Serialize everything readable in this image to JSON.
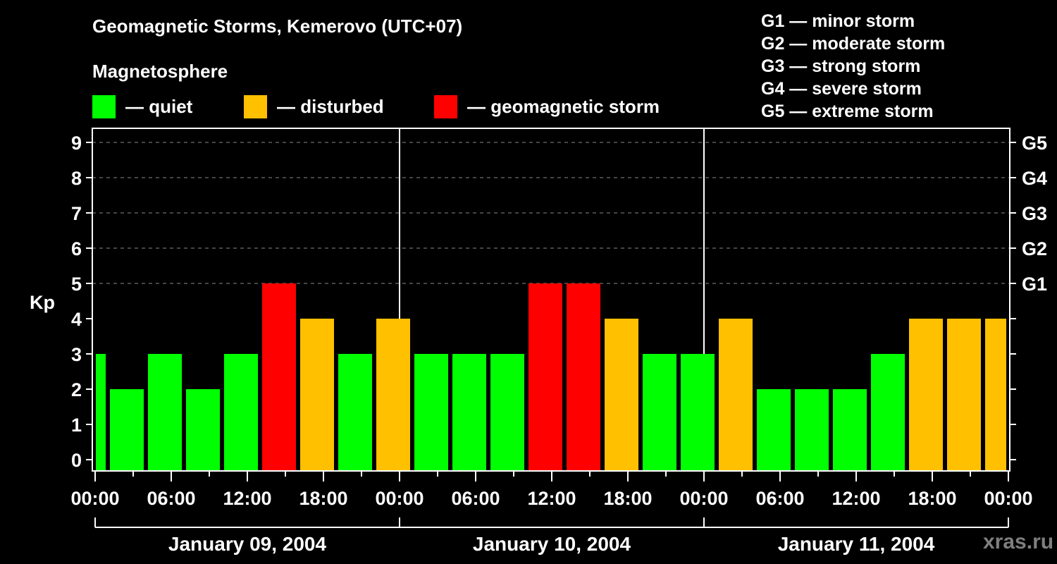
{
  "header": {
    "title": "Geomagnetic Storms, Kemerovo (UTC+07)",
    "subtitle": "Magnetosphere"
  },
  "legend": [
    {
      "label": "— quiet",
      "color": "#00ff00"
    },
    {
      "label": "— disturbed",
      "color": "#ffc000"
    },
    {
      "label": "— geomagnetic storm",
      "color": "#ff0000"
    }
  ],
  "g_scale_legend": [
    "G1 — minor storm",
    "G2 — moderate storm",
    "G3 — strong storm",
    "G4 — severe storm",
    "G5 — extreme storm"
  ],
  "watermark": "xras.ru",
  "chart_data": {
    "type": "bar",
    "title": "Geomagnetic Storms, Kemerovo (UTC+07)",
    "subtitle": "Magnetosphere",
    "ylabel": "Kp",
    "xlabel": "",
    "ylim": [
      0,
      9
    ],
    "yticks": [
      0,
      1,
      2,
      3,
      4,
      5,
      6,
      7,
      8,
      9
    ],
    "right_axis_ticks": [
      {
        "kp": 5,
        "label": "G1"
      },
      {
        "kp": 6,
        "label": "G2"
      },
      {
        "kp": 7,
        "label": "G3"
      },
      {
        "kp": 8,
        "label": "G4"
      },
      {
        "kp": 9,
        "label": "G5"
      }
    ],
    "grid": "dashed horizontal at Kp 5-9",
    "xtick_labels": [
      "00:00",
      "06:00",
      "12:00",
      "18:00",
      "00:00",
      "06:00",
      "12:00",
      "18:00",
      "00:00",
      "06:00",
      "12:00",
      "18:00",
      "00:00"
    ],
    "days": [
      "January 09, 2004",
      "January 10, 2004",
      "January 11, 2004"
    ],
    "colors": {
      "quiet": "#00ff00",
      "disturbed": "#ffc000",
      "storm": "#ff0000"
    },
    "categories": [
      "Jan 09 00:00 (partial)",
      "Jan 09 01:30",
      "Jan 09 04:30",
      "Jan 09 07:30",
      "Jan 09 10:30",
      "Jan 09 13:30",
      "Jan 09 16:30",
      "Jan 09 19:30",
      "Jan 09 22:30",
      "Jan 10 01:30",
      "Jan 10 04:30",
      "Jan 10 07:30",
      "Jan 10 10:30",
      "Jan 10 13:30",
      "Jan 10 16:30",
      "Jan 10 19:30",
      "Jan 10 22:30",
      "Jan 11 01:30",
      "Jan 11 04:30",
      "Jan 11 07:30",
      "Jan 11 10:30",
      "Jan 11 13:30",
      "Jan 11 16:30",
      "Jan 11 19:30",
      "Jan 11 22:30 (partial)"
    ],
    "values": [
      3,
      2,
      3,
      2,
      3,
      5,
      4,
      3,
      4,
      3,
      3,
      3,
      5,
      5,
      4,
      3,
      3,
      4,
      2,
      2,
      2,
      3,
      4,
      4,
      4
    ],
    "status": [
      "quiet",
      "quiet",
      "quiet",
      "quiet",
      "quiet",
      "storm",
      "disturbed",
      "quiet",
      "disturbed",
      "quiet",
      "quiet",
      "quiet",
      "storm",
      "storm",
      "disturbed",
      "quiet",
      "quiet",
      "disturbed",
      "quiet",
      "quiet",
      "quiet",
      "quiet",
      "disturbed",
      "disturbed",
      "disturbed"
    ],
    "legend_position": "top"
  }
}
